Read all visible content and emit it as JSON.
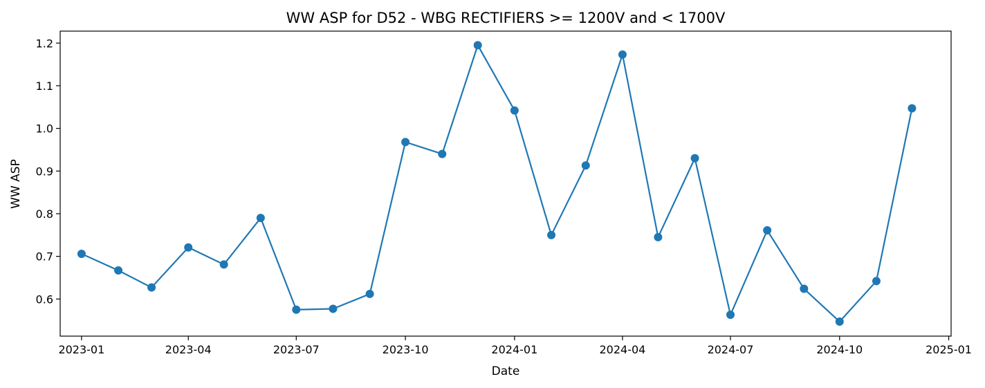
{
  "chart_data": {
    "type": "line",
    "title": "WW ASP for D52 - WBG RECTIFIERS >= 1200V and < 1700V",
    "xlabel": "Date",
    "ylabel": "WW ASP",
    "xlim": [
      "2022-12-14",
      "2025-01-03"
    ],
    "ylim": [
      0.513,
      1.228
    ],
    "x_ticks": [
      "2023-01",
      "2023-04",
      "2023-07",
      "2023-10",
      "2024-01",
      "2024-04",
      "2024-07",
      "2024-10",
      "2025-01"
    ],
    "y_ticks": [
      0.6,
      0.7,
      0.8,
      0.9,
      1.0,
      1.1,
      1.2
    ],
    "y_tick_labels": [
      "0.6",
      "0.7",
      "0.8",
      "0.9",
      "1.0",
      "1.1",
      "1.2"
    ],
    "grid": false,
    "series_color": "#1f77b4",
    "series": [
      {
        "x": [
          "2023-01-01",
          "2023-02-01",
          "2023-03-01",
          "2023-04-01",
          "2023-05-01",
          "2023-06-01",
          "2023-07-01",
          "2023-08-01",
          "2023-09-01",
          "2023-10-01",
          "2023-11-01",
          "2023-12-01",
          "2024-01-01",
          "2024-02-01",
          "2024-03-01",
          "2024-04-01",
          "2024-05-01",
          "2024-06-01",
          "2024-07-01",
          "2024-08-01",
          "2024-09-01",
          "2024-10-01",
          "2024-11-01",
          "2024-12-01"
        ],
        "values": [
          0.706,
          0.667,
          0.627,
          0.721,
          0.681,
          0.79,
          0.575,
          0.577,
          0.612,
          0.968,
          0.94,
          1.195,
          1.042,
          0.75,
          0.913,
          1.173,
          0.745,
          0.93,
          0.563,
          0.761,
          0.624,
          0.547,
          0.642,
          1.047
        ]
      }
    ]
  }
}
